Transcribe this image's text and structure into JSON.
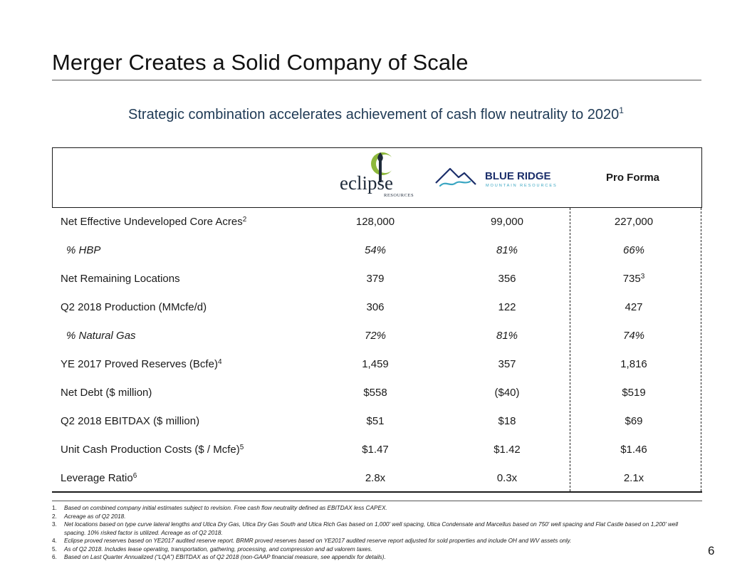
{
  "page": {
    "title": "Merger Creates a Solid Company of Scale",
    "subtitle": "Strategic combination accelerates achievement of cash flow neutrality to 2020",
    "subtitle_footnote": "1",
    "page_number": "6"
  },
  "header": {
    "col1_logo": {
      "name": "eclipse",
      "sub": "RESOURCES",
      "icon": "eclipse-logo-icon"
    },
    "col2_logo": {
      "name": "BLUE RIDGE",
      "sub": "MOUNTAIN RESOURCES",
      "icon": "blue-ridge-mountain-icon"
    },
    "col3_label": "Pro Forma"
  },
  "colors": {
    "subtitle": "#1f3a55",
    "eclipse_green": "#8db83c",
    "blue_ridge_navy": "#1c2f6b",
    "blue_ridge_teal": "#3aa6c2"
  },
  "rows": [
    {
      "label": "Net Effective Undeveloped Core Acres",
      "fn": "2",
      "v1": "128,000",
      "v2": "99,000",
      "v3": "227,000",
      "v3fn": ""
    },
    {
      "label": "% HBP",
      "fn": "",
      "v1": "54%",
      "v2": "81%",
      "v3": "66%",
      "v3fn": ""
    },
    {
      "label": "Net Remaining Locations",
      "fn": "",
      "v1": "379",
      "v2": "356",
      "v3": "735",
      "v3fn": "3"
    },
    {
      "label": "Q2 2018 Production (MMcfe/d)",
      "fn": "",
      "v1": "306",
      "v2": "122",
      "v3": "427",
      "v3fn": ""
    },
    {
      "label": "% Natural Gas",
      "fn": "",
      "v1": "72%",
      "v2": "81%",
      "v3": "74%",
      "v3fn": ""
    },
    {
      "label": "YE 2017 Proved Reserves (Bcfe)",
      "fn": "4",
      "v1": "1,459",
      "v2": "357",
      "v3": "1,816",
      "v3fn": ""
    },
    {
      "label": "Net Debt ($ million)",
      "fn": "",
      "v1": "$558",
      "v2": "($40)",
      "v3": "$519",
      "v3fn": ""
    },
    {
      "label": "Q2 2018 EBITDAX ($ million)",
      "fn": "",
      "v1": "$51",
      "v2": "$18",
      "v3": "$69",
      "v3fn": ""
    },
    {
      "label": "Unit Cash Production Costs ($ / Mcfe)",
      "fn": "5",
      "v1": "$1.47",
      "v2": "$1.42",
      "v3": "$1.46",
      "v3fn": ""
    },
    {
      "label": "Leverage Ratio",
      "fn": "6",
      "v1": "2.8x",
      "v2": "0.3x",
      "v3": "2.1x",
      "v3fn": ""
    }
  ],
  "footnotes": [
    {
      "num": "1.",
      "text": "Based on combined company initial estimates subject to revision. Free cash flow neutrality defined as EBITDAX less CAPEX."
    },
    {
      "num": "2.",
      "text": "Acreage as of Q2 2018."
    },
    {
      "num": "3.",
      "text": "Net locations based on type curve lateral lengths and Utica Dry Gas, Utica Dry Gas South and Utica Rich Gas based on 1,000' well spacing, Utica Condensate and Marcellus based on 750' well spacing and Flat Castle based on 1,200' well spacing. 10% risked factor is utilized. Acreage as of Q2 2018."
    },
    {
      "num": "4.",
      "text": "Eclipse proved reserves based on YE2017 audited reserve report.  BRMR proved reserves based on YE2017 audited reserve report adjusted for sold properties and include OH and WV assets only."
    },
    {
      "num": "5.",
      "text": "As of Q2 2018. Includes lease operating, transportation, gathering, processing, and compression and ad valorem taxes."
    },
    {
      "num": "6.",
      "text": "Based on Last Quarter Annualized (“LQA”) EBITDAX as of Q2 2018 (non-GAAP financial measure, see appendix for details)."
    }
  ]
}
